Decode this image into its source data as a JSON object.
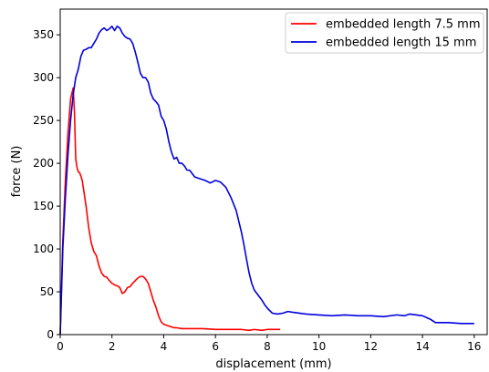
{
  "chart_data": {
    "type": "line",
    "xlabel": "displacement (mm)",
    "ylabel": "force (N)",
    "xlim": [
      0,
      16.5
    ],
    "ylim": [
      0,
      380
    ],
    "xticks": [
      0,
      2,
      4,
      6,
      8,
      10,
      12,
      14,
      16
    ],
    "yticks": [
      0,
      50,
      100,
      150,
      200,
      250,
      300,
      350
    ],
    "grid": false,
    "legend_position": "top-right",
    "series": [
      {
        "name": "embedded length 7.5 mm",
        "color": "#ff0000",
        "x": [
          0,
          0.1,
          0.2,
          0.3,
          0.4,
          0.5,
          0.55,
          0.6,
          0.65,
          0.7,
          0.75,
          0.8,
          0.85,
          0.9,
          1.0,
          1.1,
          1.2,
          1.3,
          1.4,
          1.5,
          1.6,
          1.7,
          1.8,
          1.9,
          2.0,
          2.1,
          2.2,
          2.3,
          2.4,
          2.5,
          2.6,
          2.7,
          2.8,
          2.9,
          3.0,
          3.1,
          3.2,
          3.3,
          3.4,
          3.5,
          3.6,
          3.7,
          3.8,
          3.9,
          4.0,
          4.1,
          4.2,
          4.3,
          4.4,
          4.5,
          4.7,
          5.0,
          5.5,
          6.0,
          6.5,
          7.0,
          7.3,
          7.5,
          7.8,
          8.0,
          8.5
        ],
        "y": [
          0,
          110,
          180,
          235,
          275,
          288,
          260,
          205,
          195,
          190,
          189,
          185,
          180,
          170,
          150,
          125,
          107,
          97,
          92,
          80,
          72,
          68,
          67,
          63,
          60,
          58,
          57,
          55,
          48,
          50,
          55,
          56,
          60,
          63,
          66,
          68,
          68,
          65,
          60,
          50,
          40,
          32,
          22,
          15,
          12,
          11,
          10,
          9,
          8,
          8,
          7,
          7,
          7,
          6,
          6,
          6,
          5,
          6,
          5,
          6,
          6
        ]
      },
      {
        "name": "embedded length 15 mm",
        "color": "#0000dd",
        "x": [
          0,
          0.1,
          0.2,
          0.3,
          0.4,
          0.5,
          0.6,
          0.7,
          0.8,
          0.9,
          1.0,
          1.1,
          1.2,
          1.3,
          1.4,
          1.5,
          1.6,
          1.7,
          1.8,
          1.9,
          2.0,
          2.1,
          2.2,
          2.3,
          2.4,
          2.5,
          2.6,
          2.7,
          2.8,
          2.9,
          3.0,
          3.1,
          3.2,
          3.3,
          3.4,
          3.5,
          3.6,
          3.7,
          3.8,
          3.9,
          4.0,
          4.1,
          4.2,
          4.3,
          4.4,
          4.5,
          4.6,
          4.7,
          4.8,
          4.9,
          5.0,
          5.2,
          5.4,
          5.6,
          5.8,
          6.0,
          6.2,
          6.4,
          6.6,
          6.8,
          7.0,
          7.1,
          7.2,
          7.3,
          7.4,
          7.5,
          7.6,
          7.7,
          7.8,
          7.9,
          8.0,
          8.2,
          8.4,
          8.6,
          8.8,
          9.0,
          9.5,
          10.0,
          10.5,
          11.0,
          11.5,
          12.0,
          12.5,
          13.0,
          13.3,
          13.5,
          14.0,
          14.3,
          14.5,
          15.0,
          15.5,
          16.0
        ],
        "y": [
          0,
          100,
          160,
          210,
          250,
          280,
          300,
          310,
          325,
          332,
          333,
          335,
          335,
          340,
          345,
          352,
          356,
          358,
          355,
          357,
          360,
          355,
          360,
          358,
          352,
          348,
          346,
          345,
          340,
          330,
          318,
          305,
          300,
          300,
          295,
          282,
          275,
          272,
          268,
          255,
          250,
          240,
          225,
          213,
          205,
          207,
          200,
          200,
          197,
          192,
          192,
          184,
          182,
          180,
          177,
          180,
          178,
          172,
          160,
          145,
          120,
          105,
          88,
          72,
          60,
          52,
          48,
          44,
          40,
          35,
          31,
          25,
          24,
          25,
          27,
          26,
          24,
          23,
          22,
          23,
          22,
          22,
          21,
          23,
          22,
          24,
          22,
          18,
          14,
          14,
          13,
          13
        ]
      }
    ]
  }
}
